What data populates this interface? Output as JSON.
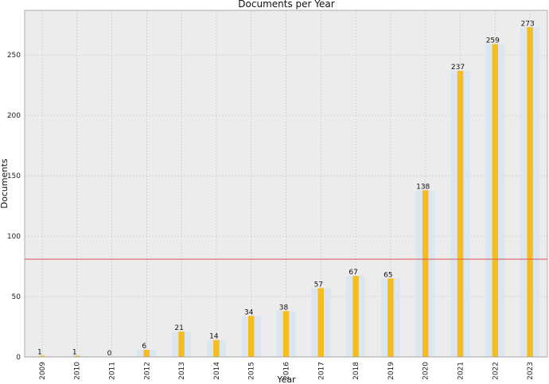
{
  "chart_data": {
    "type": "bar",
    "title": "Documents per Year",
    "xlabel": "Year",
    "ylabel": "Documents",
    "categories": [
      "2009",
      "2010",
      "2011",
      "2012",
      "2013",
      "2014",
      "2015",
      "2016",
      "2017",
      "2018",
      "2019",
      "2020",
      "2021",
      "2022",
      "2023"
    ],
    "values": [
      1,
      1,
      0,
      6,
      21,
      14,
      34,
      38,
      57,
      67,
      65,
      138,
      237,
      259,
      273
    ],
    "ylim": [
      0,
      287
    ],
    "yticks": [
      0,
      50,
      100,
      150,
      200,
      250
    ],
    "reference_line": {
      "y": 81,
      "color": "#e05050"
    },
    "grid": true,
    "colors": {
      "bar": "#f5bd1f",
      "bar_background": "#dce6f0",
      "plot_background": "#ececec",
      "grid": "#c8c8c8"
    }
  }
}
